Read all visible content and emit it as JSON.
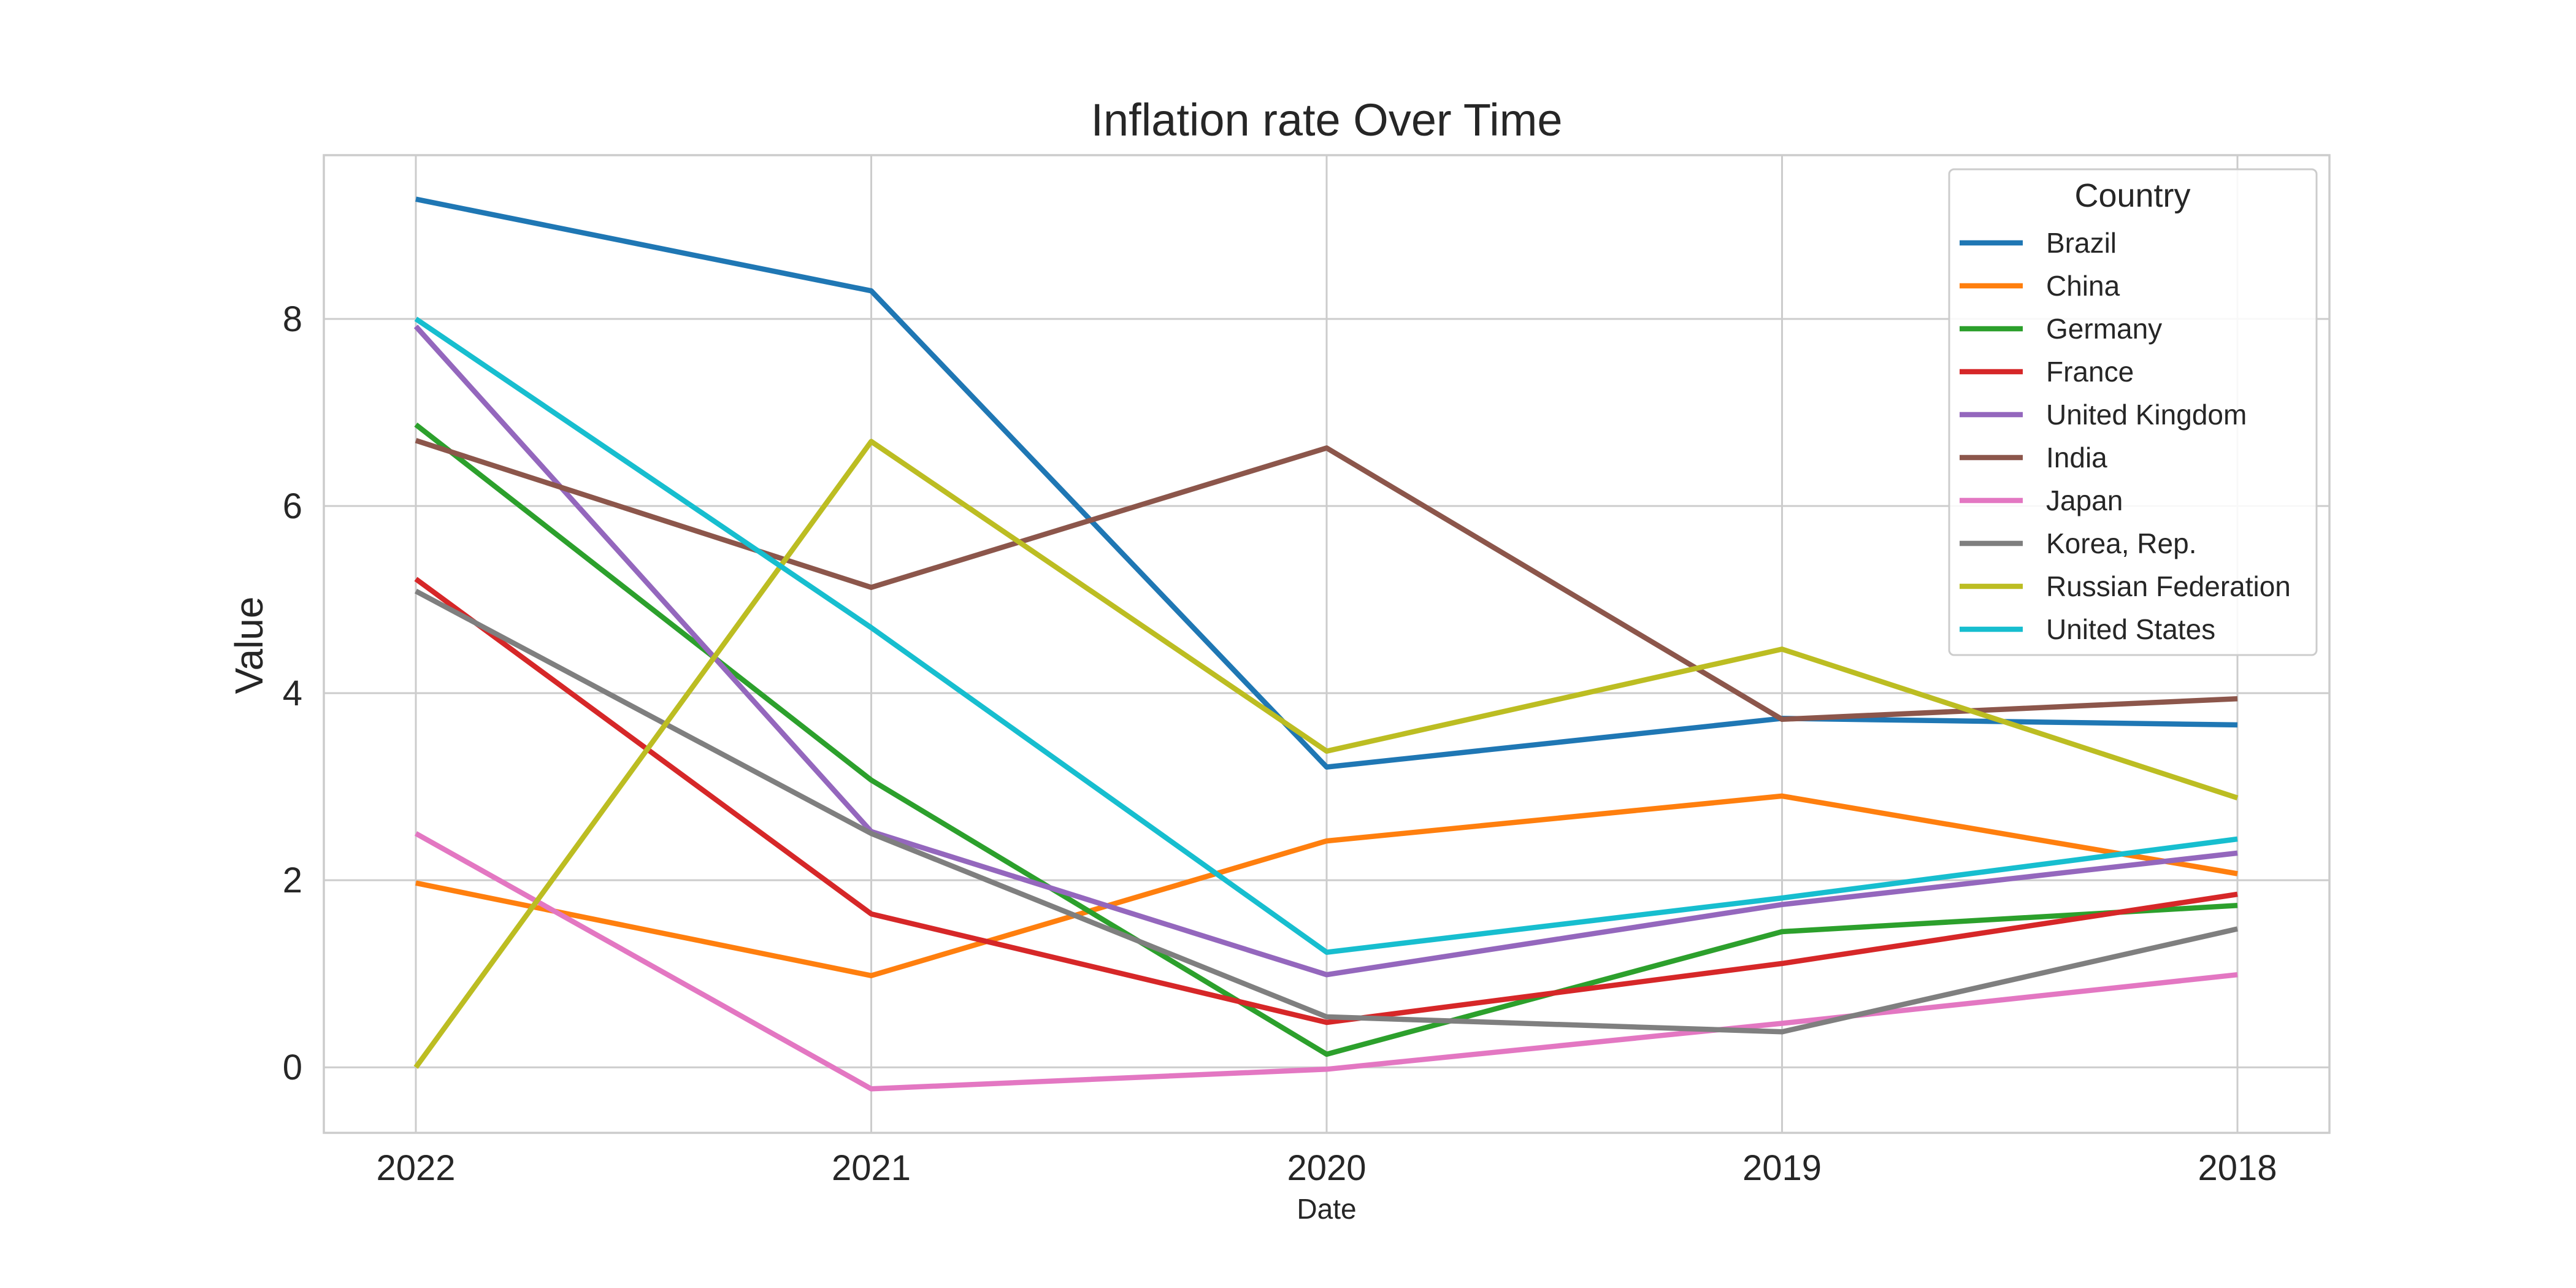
{
  "chart_data": {
    "type": "line",
    "title": "Inflation rate Over Time",
    "xlabel": "Date",
    "ylabel": "Value",
    "x": [
      "2022",
      "2021",
      "2020",
      "2019",
      "2018"
    ],
    "ylim": [
      -0.7,
      9.75
    ],
    "yticks": [
      0,
      2,
      4,
      6,
      8
    ],
    "grid": true,
    "legend": {
      "title": "Country",
      "placement": "top-right"
    },
    "series": [
      {
        "name": "Brazil",
        "color": "#1f77b4",
        "values": [
          9.28,
          8.3,
          3.21,
          3.73,
          3.66
        ]
      },
      {
        "name": "China",
        "color": "#ff7f0e",
        "values": [
          1.97,
          0.98,
          2.42,
          2.9,
          2.07
        ]
      },
      {
        "name": "Germany",
        "color": "#2ca02c",
        "values": [
          6.87,
          3.07,
          0.14,
          1.45,
          1.73
        ]
      },
      {
        "name": "France",
        "color": "#d62728",
        "values": [
          5.22,
          1.64,
          0.48,
          1.11,
          1.85
        ]
      },
      {
        "name": "United Kingdom",
        "color": "#9467bd",
        "values": [
          7.92,
          2.52,
          0.99,
          1.74,
          2.29
        ]
      },
      {
        "name": "India",
        "color": "#8c564b",
        "values": [
          6.7,
          5.13,
          6.62,
          3.72,
          3.94
        ]
      },
      {
        "name": "Japan",
        "color": "#e377c2",
        "values": [
          2.5,
          -0.23,
          -0.02,
          0.47,
          0.99
        ]
      },
      {
        "name": "Korea, Rep.",
        "color": "#7f7f7f",
        "values": [
          5.09,
          2.5,
          0.54,
          0.38,
          1.48
        ]
      },
      {
        "name": "Russian Federation",
        "color": "#bcbd22",
        "values": [
          0.0,
          6.69,
          3.38,
          4.47,
          2.88
        ]
      },
      {
        "name": "United States",
        "color": "#17becf",
        "values": [
          8.0,
          4.7,
          1.23,
          1.81,
          2.44
        ]
      }
    ]
  }
}
